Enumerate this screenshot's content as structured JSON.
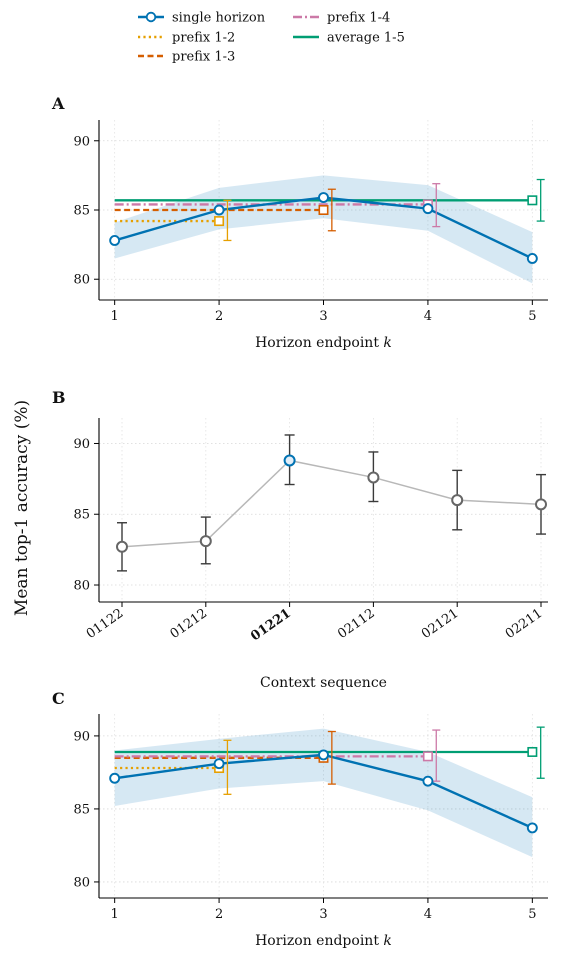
{
  "figure": {
    "ylabel": "Mean top-1 accuracy (%)",
    "legend": {
      "placement": "top-center",
      "entries": [
        {
          "key": "single",
          "label": "single horizon",
          "color": "#0072B2",
          "style": "solid-circle"
        },
        {
          "key": "p12",
          "label": "prefix 1-2",
          "color": "#E69F00",
          "style": "dotted-square"
        },
        {
          "key": "p13",
          "label": "prefix 1-3",
          "color": "#D55E00",
          "style": "dashed-square"
        },
        {
          "key": "p14",
          "label": "prefix 1-4",
          "color": "#CC79A7",
          "style": "dashdot-square"
        },
        {
          "key": "avg",
          "label": "average 1-5",
          "color": "#009E73",
          "style": "solid-square"
        }
      ]
    }
  },
  "chart_data": [
    {
      "panel": "A",
      "type": "line",
      "xlabel": "Horizon endpoint k",
      "x": [
        1,
        2,
        3,
        4,
        5
      ],
      "xlim": [
        0.85,
        5.15
      ],
      "ylim": [
        78.5,
        91.5
      ],
      "yticks": [
        80,
        85,
        90
      ],
      "grid": true,
      "series": [
        {
          "name": "single horizon",
          "x": [
            1,
            2,
            3,
            4,
            5
          ],
          "y": [
            82.8,
            85.0,
            85.9,
            85.1,
            81.5
          ],
          "band_low": [
            81.5,
            83.6,
            84.4,
            83.5,
            79.7
          ],
          "band_high": [
            84.1,
            86.6,
            87.5,
            86.8,
            83.4
          ]
        },
        {
          "name": "prefix 1-2",
          "y": 84.2,
          "x_end": 2,
          "err_x": 2.08,
          "err": [
            82.8,
            85.7
          ]
        },
        {
          "name": "prefix 1-3",
          "y": 85.0,
          "x_end": 3,
          "err_x": 3.08,
          "err": [
            83.5,
            86.5
          ]
        },
        {
          "name": "prefix 1-4",
          "y": 85.4,
          "x_end": 4,
          "err_x": 4.08,
          "err": [
            83.8,
            86.9
          ]
        },
        {
          "name": "average 1-5",
          "y": 85.7,
          "x_end": 5,
          "err_x": 5.08,
          "err": [
            84.2,
            87.2
          ]
        }
      ]
    },
    {
      "panel": "B",
      "type": "line",
      "xlabel": "Context sequence",
      "categories": [
        "01122",
        "01212",
        "01221",
        "02112",
        "02121",
        "02211"
      ],
      "highlight": "01221",
      "values": [
        82.7,
        83.1,
        88.8,
        87.6,
        86.0,
        85.7
      ],
      "err_low": [
        81.0,
        81.5,
        87.1,
        85.9,
        83.9,
        83.6
      ],
      "err_high": [
        84.4,
        84.8,
        90.6,
        89.4,
        88.1,
        87.8
      ],
      "ylim": [
        78.8,
        91.8
      ],
      "yticks": [
        80,
        85,
        90
      ],
      "grid": true
    },
    {
      "panel": "C",
      "type": "line",
      "xlabel": "Horizon endpoint k",
      "x": [
        1,
        2,
        3,
        4,
        5
      ],
      "xlim": [
        0.85,
        5.15
      ],
      "ylim": [
        78.9,
        91.5
      ],
      "yticks": [
        80,
        85,
        90
      ],
      "grid": true,
      "series": [
        {
          "name": "single horizon",
          "x": [
            1,
            2,
            3,
            4,
            5
          ],
          "y": [
            87.1,
            88.1,
            88.7,
            86.9,
            83.7
          ],
          "band_low": [
            85.2,
            86.4,
            86.9,
            84.9,
            81.7
          ],
          "band_high": [
            89.0,
            89.8,
            90.5,
            88.9,
            85.8
          ]
        },
        {
          "name": "prefix 1-2",
          "y": 87.8,
          "x_end": 2,
          "err_x": 2.08,
          "err": [
            86.0,
            89.7
          ]
        },
        {
          "name": "prefix 1-3",
          "y": 88.5,
          "x_end": 3,
          "err_x": 3.08,
          "err": [
            86.7,
            90.3
          ]
        },
        {
          "name": "prefix 1-4",
          "y": 88.6,
          "x_end": 4,
          "err_x": 4.08,
          "err": [
            86.9,
            90.4
          ]
        },
        {
          "name": "average 1-5",
          "y": 88.9,
          "x_end": 5,
          "err_x": 5.08,
          "err": [
            87.1,
            90.6
          ]
        }
      ]
    }
  ]
}
